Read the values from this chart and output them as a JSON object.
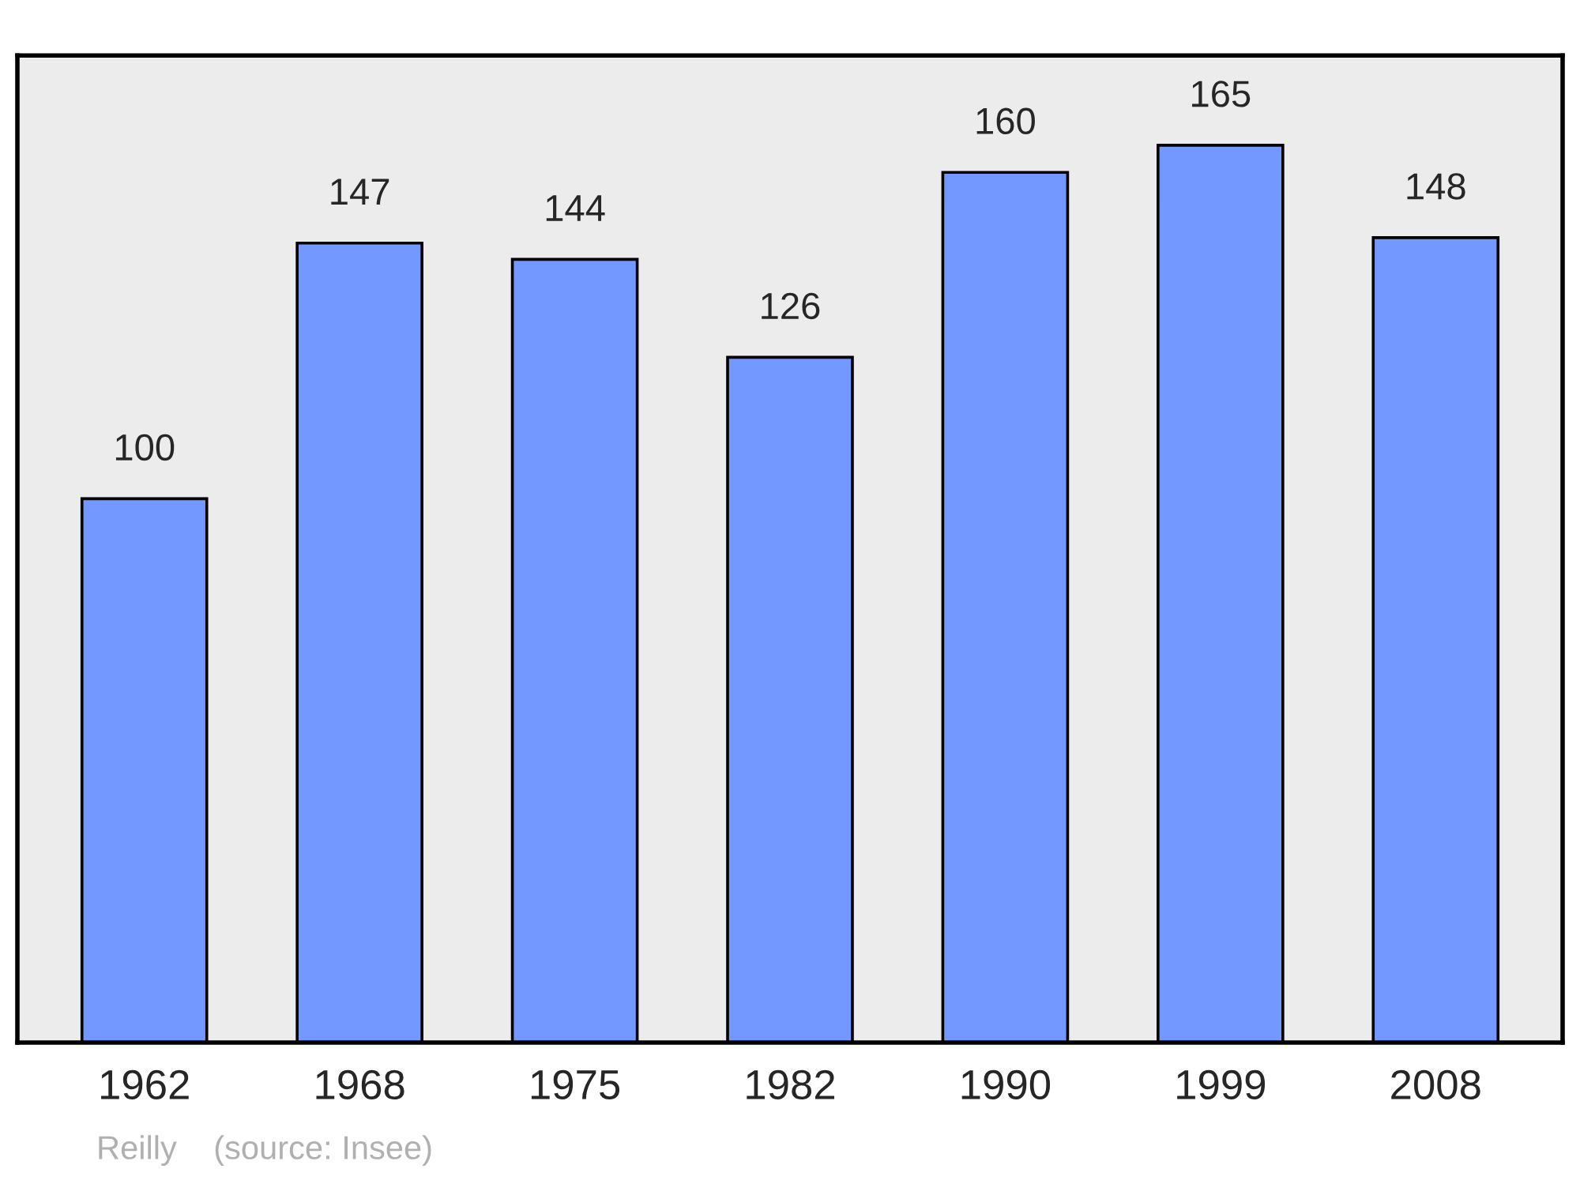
{
  "chart_data": {
    "type": "bar",
    "categories": [
      "1962",
      "1968",
      "1975",
      "1982",
      "1990",
      "1999",
      "2008"
    ],
    "values": [
      100,
      147,
      144,
      126,
      160,
      165,
      148
    ],
    "color": "#7398ff",
    "data_labels": true,
    "grid": false,
    "tick_labels": "x",
    "annotations": [
      "Reilly    (source: Insee)"
    ]
  }
}
